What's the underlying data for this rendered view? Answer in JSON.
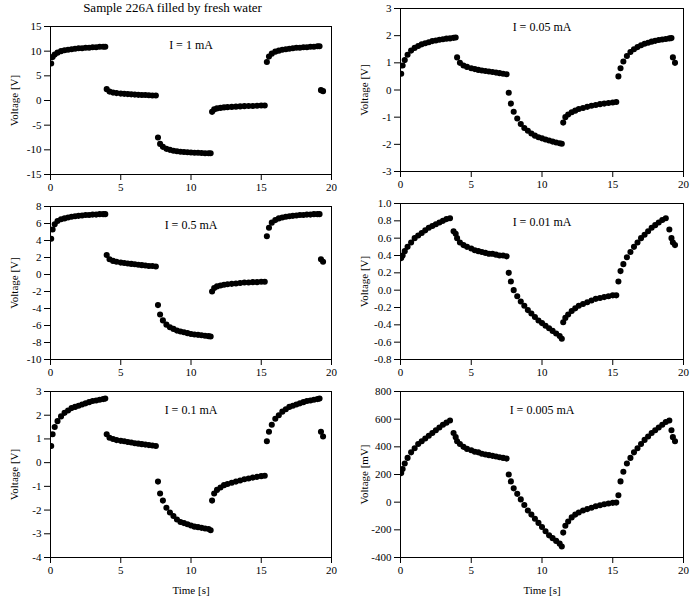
{
  "title": "Sample 226A filled by fresh water",
  "chart_data": [
    {
      "type": "scatter",
      "annotation": "I = 1 mA",
      "y_label": "Voltage [V]",
      "color": "#000000",
      "marker": "circle",
      "xlim": [
        0,
        20
      ],
      "xticks": [
        0,
        5,
        10,
        15,
        20
      ],
      "ylim": [
        -15,
        15
      ],
      "yticks": [
        -15,
        -10,
        -5,
        0,
        5,
        10,
        15
      ],
      "x": [
        0.05,
        0.15,
        0.3,
        0.5,
        0.75,
        1.0,
        1.25,
        1.5,
        1.75,
        2.0,
        2.25,
        2.5,
        2.75,
        3.0,
        3.25,
        3.5,
        3.75,
        3.9,
        4.0,
        4.2,
        4.45,
        4.7,
        5.0,
        5.25,
        5.5,
        5.75,
        6.0,
        6.25,
        6.5,
        6.75,
        7.0,
        7.25,
        7.5,
        7.65,
        7.8,
        8.0,
        8.25,
        8.5,
        8.75,
        9.0,
        9.25,
        9.5,
        9.75,
        10.0,
        10.25,
        10.5,
        10.75,
        11.0,
        11.25,
        11.4,
        11.5,
        11.65,
        11.85,
        12.1,
        12.35,
        12.6,
        12.9,
        13.2,
        13.5,
        13.8,
        14.1,
        14.4,
        14.7,
        15.0,
        15.25,
        15.4,
        15.55,
        15.75,
        16.0,
        16.25,
        16.5,
        16.75,
        17.0,
        17.25,
        17.5,
        17.75,
        18.0,
        18.25,
        18.5,
        18.75,
        19.0,
        19.15,
        19.25,
        19.4
      ],
      "values": [
        7.5,
        8.8,
        9.3,
        9.7,
        10.0,
        10.2,
        10.3,
        10.4,
        10.5,
        10.6,
        10.6,
        10.7,
        10.7,
        10.8,
        10.8,
        10.9,
        10.9,
        10.9,
        2.3,
        1.8,
        1.6,
        1.5,
        1.4,
        1.35,
        1.3,
        1.25,
        1.2,
        1.15,
        1.1,
        1.1,
        1.05,
        1.0,
        1.0,
        -7.5,
        -8.8,
        -9.4,
        -9.8,
        -10.0,
        -10.2,
        -10.3,
        -10.4,
        -10.45,
        -10.5,
        -10.55,
        -10.6,
        -10.6,
        -10.65,
        -10.7,
        -10.7,
        -10.7,
        -2.3,
        -1.8,
        -1.6,
        -1.5,
        -1.4,
        -1.35,
        -1.3,
        -1.25,
        -1.2,
        -1.15,
        -1.1,
        -1.1,
        -1.05,
        -1.0,
        -1.0,
        7.8,
        8.9,
        9.5,
        9.9,
        10.1,
        10.3,
        10.4,
        10.5,
        10.6,
        10.7,
        10.7,
        10.8,
        10.8,
        10.9,
        10.9,
        11.0,
        11.0,
        2.1,
        1.9
      ]
    },
    {
      "type": "scatter",
      "annotation": "I = 0.05 mA",
      "y_label": "Voltage [V]",
      "color": "#000000",
      "marker": "circle",
      "xlim": [
        0,
        20
      ],
      "xticks": [
        0,
        5,
        10,
        15,
        20
      ],
      "ylim": [
        -3,
        3
      ],
      "yticks": [
        -3,
        -2,
        -1,
        0,
        1,
        2,
        3
      ],
      "x": [
        0.05,
        0.15,
        0.3,
        0.5,
        0.75,
        1.0,
        1.25,
        1.5,
        1.75,
        2.0,
        2.25,
        2.5,
        2.75,
        3.0,
        3.25,
        3.5,
        3.75,
        3.9,
        4.0,
        4.2,
        4.45,
        4.7,
        5.0,
        5.25,
        5.5,
        5.75,
        6.0,
        6.25,
        6.5,
        6.75,
        7.0,
        7.25,
        7.5,
        7.65,
        7.8,
        8.0,
        8.25,
        8.5,
        8.75,
        9.0,
        9.25,
        9.5,
        9.75,
        10.0,
        10.25,
        10.5,
        10.75,
        11.0,
        11.25,
        11.4,
        11.5,
        11.65,
        11.85,
        12.1,
        12.35,
        12.6,
        12.9,
        13.2,
        13.5,
        13.8,
        14.1,
        14.4,
        14.7,
        15.0,
        15.25,
        15.4,
        15.55,
        15.75,
        16.0,
        16.25,
        16.5,
        16.75,
        17.0,
        17.25,
        17.5,
        17.75,
        18.0,
        18.25,
        18.5,
        18.75,
        19.0,
        19.15,
        19.25,
        19.4
      ],
      "values": [
        0.6,
        0.9,
        1.1,
        1.3,
        1.45,
        1.55,
        1.62,
        1.68,
        1.72,
        1.76,
        1.8,
        1.82,
        1.85,
        1.87,
        1.89,
        1.9,
        1.92,
        1.93,
        1.2,
        1.0,
        0.9,
        0.85,
        0.8,
        0.77,
        0.74,
        0.72,
        0.7,
        0.68,
        0.66,
        0.64,
        0.62,
        0.6,
        0.58,
        -0.1,
        -0.5,
        -0.8,
        -1.05,
        -1.25,
        -1.4,
        -1.5,
        -1.6,
        -1.68,
        -1.74,
        -1.78,
        -1.82,
        -1.86,
        -1.9,
        -1.93,
        -1.96,
        -1.98,
        -1.2,
        -1.0,
        -0.9,
        -0.82,
        -0.76,
        -0.7,
        -0.66,
        -0.62,
        -0.58,
        -0.55,
        -0.52,
        -0.5,
        -0.48,
        -0.46,
        -0.44,
        0.5,
        0.8,
        1.05,
        1.25,
        1.4,
        1.5,
        1.58,
        1.65,
        1.7,
        1.74,
        1.78,
        1.81,
        1.84,
        1.86,
        1.88,
        1.9,
        1.91,
        1.2,
        1.0
      ]
    },
    {
      "type": "scatter",
      "annotation": "I = 0.5 mA",
      "y_label": "Voltage [V]",
      "color": "#000000",
      "marker": "circle",
      "xlim": [
        0,
        20
      ],
      "xticks": [
        0,
        5,
        10,
        15,
        20
      ],
      "ylim": [
        -10,
        8
      ],
      "yticks": [
        -10,
        -8,
        -6,
        -4,
        -2,
        0,
        2,
        4,
        6,
        8
      ],
      "x": [
        0.05,
        0.15,
        0.3,
        0.5,
        0.75,
        1.0,
        1.25,
        1.5,
        1.75,
        2.0,
        2.25,
        2.5,
        2.75,
        3.0,
        3.25,
        3.5,
        3.75,
        3.9,
        4.0,
        4.2,
        4.45,
        4.7,
        5.0,
        5.25,
        5.5,
        5.75,
        6.0,
        6.25,
        6.5,
        6.75,
        7.0,
        7.25,
        7.5,
        7.65,
        7.8,
        8.0,
        8.25,
        8.5,
        8.75,
        9.0,
        9.25,
        9.5,
        9.75,
        10.0,
        10.25,
        10.5,
        10.75,
        11.0,
        11.25,
        11.4,
        11.5,
        11.65,
        11.85,
        12.1,
        12.35,
        12.6,
        12.9,
        13.2,
        13.5,
        13.8,
        14.1,
        14.4,
        14.7,
        15.0,
        15.25,
        15.4,
        15.55,
        15.75,
        16.0,
        16.25,
        16.5,
        16.75,
        17.0,
        17.25,
        17.5,
        17.75,
        18.0,
        18.25,
        18.5,
        18.75,
        19.0,
        19.15,
        19.25,
        19.4
      ],
      "values": [
        4.2,
        5.3,
        5.9,
        6.3,
        6.5,
        6.6,
        6.7,
        6.8,
        6.85,
        6.9,
        6.95,
        7.0,
        7.0,
        7.05,
        7.05,
        7.1,
        7.1,
        7.1,
        2.3,
        1.8,
        1.6,
        1.5,
        1.4,
        1.35,
        1.3,
        1.25,
        1.2,
        1.15,
        1.1,
        1.05,
        1.0,
        1.0,
        0.95,
        -3.6,
        -4.7,
        -5.4,
        -5.9,
        -6.2,
        -6.4,
        -6.6,
        -6.7,
        -6.8,
        -6.9,
        -7.0,
        -7.05,
        -7.1,
        -7.15,
        -7.2,
        -7.25,
        -7.3,
        -2.0,
        -1.6,
        -1.4,
        -1.3,
        -1.2,
        -1.15,
        -1.1,
        -1.05,
        -1.0,
        -0.95,
        -0.95,
        -0.9,
        -0.9,
        -0.85,
        -0.85,
        4.5,
        5.5,
        6.1,
        6.4,
        6.6,
        6.7,
        6.8,
        6.85,
        6.9,
        6.95,
        7.0,
        7.0,
        7.05,
        7.05,
        7.1,
        7.1,
        7.1,
        1.8,
        1.5
      ]
    },
    {
      "type": "scatter",
      "annotation": "I = 0.01 mA",
      "y_label": "Voltage [V]",
      "color": "#000000",
      "marker": "circle",
      "xlim": [
        0,
        20
      ],
      "xticks": [
        0,
        5,
        10,
        15,
        20
      ],
      "ylim": [
        -0.8,
        1.0
      ],
      "yticks": [
        -0.8,
        -0.6,
        -0.4,
        -0.2,
        {
          "value": 0,
          "label": "0.0"
        },
        0.2,
        0.4,
        0.6,
        0.8,
        {
          "value": 1,
          "label": "1.0"
        }
      ],
      "x": [
        0.05,
        0.15,
        0.3,
        0.5,
        0.75,
        1.0,
        1.25,
        1.5,
        1.75,
        2.0,
        2.25,
        2.5,
        2.75,
        3.0,
        3.25,
        3.5,
        3.75,
        3.9,
        4.0,
        4.2,
        4.45,
        4.7,
        5.0,
        5.25,
        5.5,
        5.75,
        6.0,
        6.25,
        6.5,
        6.75,
        7.0,
        7.25,
        7.5,
        7.65,
        7.8,
        8.0,
        8.25,
        8.5,
        8.75,
        9.0,
        9.25,
        9.5,
        9.75,
        10.0,
        10.25,
        10.5,
        10.75,
        11.0,
        11.25,
        11.4,
        11.5,
        11.65,
        11.85,
        12.1,
        12.35,
        12.6,
        12.9,
        13.2,
        13.5,
        13.8,
        14.1,
        14.4,
        14.7,
        15.0,
        15.25,
        15.4,
        15.55,
        15.75,
        16.0,
        16.25,
        16.5,
        16.75,
        17.0,
        17.25,
        17.5,
        17.75,
        18.0,
        18.25,
        18.5,
        18.75,
        19.0,
        19.15,
        19.25,
        19.4
      ],
      "values": [
        0.37,
        0.4,
        0.45,
        0.5,
        0.55,
        0.6,
        0.63,
        0.66,
        0.69,
        0.72,
        0.74,
        0.76,
        0.78,
        0.8,
        0.82,
        0.83,
        0.68,
        0.65,
        0.6,
        0.55,
        0.52,
        0.5,
        0.48,
        0.46,
        0.45,
        0.44,
        0.43,
        0.42,
        0.42,
        0.41,
        0.4,
        0.4,
        0.39,
        0.2,
        0.1,
        0.0,
        -0.07,
        -0.13,
        -0.18,
        -0.23,
        -0.27,
        -0.31,
        -0.35,
        -0.38,
        -0.41,
        -0.44,
        -0.47,
        -0.5,
        -0.53,
        -0.56,
        -0.37,
        -0.32,
        -0.28,
        -0.24,
        -0.21,
        -0.18,
        -0.16,
        -0.14,
        -0.12,
        -0.1,
        -0.09,
        -0.08,
        -0.07,
        -0.06,
        -0.06,
        0.1,
        0.22,
        0.3,
        0.38,
        0.44,
        0.5,
        0.55,
        0.6,
        0.64,
        0.68,
        0.72,
        0.75,
        0.78,
        0.81,
        0.83,
        0.7,
        0.6,
        0.55,
        0.52
      ]
    },
    {
      "type": "scatter",
      "annotation": "I = 0.1 mA",
      "y_label": "Voltage [V]",
      "x_label": "Time [s]",
      "color": "#000000",
      "marker": "circle",
      "xlim": [
        0,
        20
      ],
      "xticks": [
        0,
        5,
        10,
        15,
        20
      ],
      "ylim": [
        -4,
        3
      ],
      "yticks": [
        -4,
        -3,
        -2,
        -1,
        0,
        1,
        2,
        3
      ],
      "x": [
        0.05,
        0.15,
        0.3,
        0.5,
        0.75,
        1.0,
        1.25,
        1.5,
        1.75,
        2.0,
        2.25,
        2.5,
        2.75,
        3.0,
        3.25,
        3.5,
        3.75,
        3.9,
        4.0,
        4.2,
        4.45,
        4.7,
        5.0,
        5.25,
        5.5,
        5.75,
        6.0,
        6.25,
        6.5,
        6.75,
        7.0,
        7.25,
        7.5,
        7.65,
        7.8,
        8.0,
        8.25,
        8.5,
        8.75,
        9.0,
        9.25,
        9.5,
        9.75,
        10.0,
        10.25,
        10.5,
        10.75,
        11.0,
        11.25,
        11.4,
        11.5,
        11.65,
        11.85,
        12.1,
        12.35,
        12.6,
        12.9,
        13.2,
        13.5,
        13.8,
        14.1,
        14.4,
        14.7,
        15.0,
        15.25,
        15.4,
        15.55,
        15.75,
        16.0,
        16.25,
        16.5,
        16.75,
        17.0,
        17.25,
        17.5,
        17.75,
        18.0,
        18.25,
        18.5,
        18.75,
        19.0,
        19.15,
        19.25,
        19.4
      ],
      "values": [
        0.7,
        1.2,
        1.5,
        1.75,
        1.95,
        2.1,
        2.2,
        2.3,
        2.35,
        2.4,
        2.45,
        2.5,
        2.55,
        2.6,
        2.62,
        2.65,
        2.68,
        2.7,
        1.2,
        1.05,
        1.0,
        0.95,
        0.92,
        0.9,
        0.87,
        0.85,
        0.82,
        0.8,
        0.78,
        0.76,
        0.74,
        0.72,
        0.7,
        -0.8,
        -1.3,
        -1.6,
        -1.9,
        -2.1,
        -2.25,
        -2.4,
        -2.5,
        -2.55,
        -2.6,
        -2.65,
        -2.7,
        -2.72,
        -2.75,
        -2.78,
        -2.8,
        -2.85,
        -1.6,
        -1.3,
        -1.15,
        -1.05,
        -0.95,
        -0.9,
        -0.85,
        -0.8,
        -0.75,
        -0.7,
        -0.67,
        -0.63,
        -0.6,
        -0.57,
        -0.55,
        0.9,
        1.3,
        1.6,
        1.85,
        2.0,
        2.15,
        2.25,
        2.35,
        2.4,
        2.45,
        2.5,
        2.55,
        2.6,
        2.62,
        2.65,
        2.68,
        2.7,
        1.3,
        1.1
      ]
    },
    {
      "type": "scatter",
      "annotation": "I = 0.005 mA",
      "y_label": "Voltage [mV]",
      "x_label": "Time [s]",
      "color": "#000000",
      "marker": "circle",
      "xlim": [
        0,
        20
      ],
      "xticks": [
        0,
        5,
        10,
        15,
        20
      ],
      "ylim": [
        -400,
        800
      ],
      "yticks": [
        -400,
        -200,
        0,
        200,
        400,
        600,
        800
      ],
      "x": [
        0.05,
        0.15,
        0.3,
        0.5,
        0.75,
        1.0,
        1.25,
        1.5,
        1.75,
        2.0,
        2.25,
        2.5,
        2.75,
        3.0,
        3.25,
        3.5,
        3.75,
        3.9,
        4.0,
        4.2,
        4.45,
        4.7,
        5.0,
        5.25,
        5.5,
        5.75,
        6.0,
        6.25,
        6.5,
        6.75,
        7.0,
        7.25,
        7.5,
        7.65,
        7.8,
        8.0,
        8.25,
        8.5,
        8.75,
        9.0,
        9.25,
        9.5,
        9.75,
        10.0,
        10.25,
        10.5,
        10.75,
        11.0,
        11.25,
        11.4,
        11.5,
        11.65,
        11.85,
        12.1,
        12.35,
        12.6,
        12.9,
        13.2,
        13.5,
        13.8,
        14.1,
        14.4,
        14.7,
        15.0,
        15.25,
        15.4,
        15.55,
        15.75,
        16.0,
        16.25,
        16.5,
        16.75,
        17.0,
        17.25,
        17.5,
        17.75,
        18.0,
        18.25,
        18.5,
        18.75,
        19.0,
        19.15,
        19.25,
        19.4
      ],
      "values": [
        210,
        240,
        280,
        320,
        360,
        390,
        420,
        440,
        460,
        480,
        500,
        520,
        540,
        560,
        575,
        590,
        500,
        470,
        440,
        420,
        400,
        385,
        375,
        365,
        360,
        350,
        345,
        340,
        335,
        330,
        325,
        320,
        315,
        200,
        150,
        100,
        60,
        20,
        -20,
        -60,
        -90,
        -120,
        -150,
        -180,
        -210,
        -240,
        -260,
        -280,
        -300,
        -320,
        -220,
        -170,
        -140,
        -110,
        -90,
        -75,
        -60,
        -50,
        -40,
        -30,
        -22,
        -15,
        -10,
        -5,
        -3,
        50,
        150,
        220,
        280,
        320,
        360,
        390,
        420,
        450,
        475,
        500,
        520,
        540,
        560,
        580,
        590,
        520,
        470,
        440
      ]
    }
  ]
}
